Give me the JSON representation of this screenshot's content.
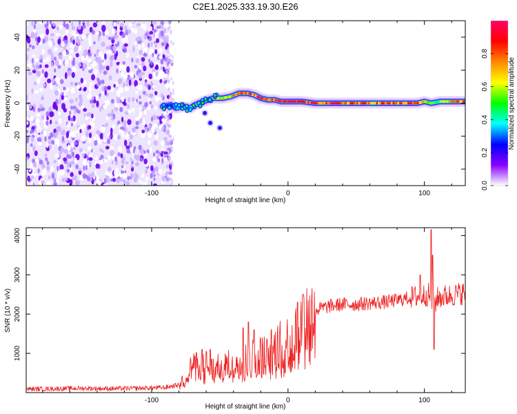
{
  "title": "C2E1.2025.333.19.30.E26",
  "chart_data": [
    {
      "type": "heatmap",
      "name": "spectrogram",
      "xlabel": "Height of straight line (km)",
      "ylabel": "Frequency (Hz)",
      "xlim": [
        -192,
        130
      ],
      "ylim": [
        -50,
        50
      ],
      "xticks": [
        -100,
        0,
        100
      ],
      "yticks": [
        -40,
        -20,
        0,
        20,
        40
      ],
      "colorbar": {
        "label": "Normalized spectral amplitude",
        "range": [
          0,
          1
        ],
        "ticks": [
          "0.0",
          "0.2",
          "0.4",
          "0.6",
          "0.8"
        ],
        "tick_values": [
          0,
          0.2,
          0.4,
          0.6,
          0.8
        ],
        "colors": [
          "#ffffff",
          "#8800ff",
          "#0000ff",
          "#00ffff",
          "#00ff00",
          "#ffff00",
          "#ff8800",
          "#ff0000",
          "#ff0066"
        ]
      },
      "noise_region": {
        "x_start": -192,
        "x_end": -87,
        "y_min": -50,
        "y_max": 50
      },
      "ridge": [
        {
          "x": -92,
          "y": -2
        },
        {
          "x": -86,
          "y": -1
        },
        {
          "x": -82,
          "y": -3
        },
        {
          "x": -78,
          "y": -2
        },
        {
          "x": -72,
          "y": -3
        },
        {
          "x": -68,
          "y": -1
        },
        {
          "x": -62,
          "y": 1
        },
        {
          "x": -55,
          "y": 3
        },
        {
          "x": -48,
          "y": 3
        },
        {
          "x": -42,
          "y": 4
        },
        {
          "x": -36,
          "y": 6
        },
        {
          "x": -30,
          "y": 6
        },
        {
          "x": -25,
          "y": 5
        },
        {
          "x": -20,
          "y": 3
        },
        {
          "x": -15,
          "y": 2
        },
        {
          "x": -10,
          "y": 2
        },
        {
          "x": -5,
          "y": 1
        },
        {
          "x": 0,
          "y": 1
        },
        {
          "x": 10,
          "y": 1
        },
        {
          "x": 20,
          "y": 0
        },
        {
          "x": 40,
          "y": 0
        },
        {
          "x": 60,
          "y": 0
        },
        {
          "x": 80,
          "y": 0
        },
        {
          "x": 95,
          "y": 0
        },
        {
          "x": 100,
          "y": 1
        },
        {
          "x": 105,
          "y": 0
        },
        {
          "x": 112,
          "y": 1
        },
        {
          "x": 130,
          "y": 1
        }
      ],
      "ridge_amplitude": [
        {
          "x": -92,
          "a": 0.15
        },
        {
          "x": -82,
          "a": 0.35
        },
        {
          "x": -70,
          "a": 0.45
        },
        {
          "x": -55,
          "a": 0.55
        },
        {
          "x": -40,
          "a": 0.65
        },
        {
          "x": -30,
          "a": 0.85
        },
        {
          "x": -15,
          "a": 0.8
        },
        {
          "x": 0,
          "a": 0.9
        },
        {
          "x": 20,
          "a": 0.9
        },
        {
          "x": 60,
          "a": 0.75
        },
        {
          "x": 95,
          "a": 0.8
        },
        {
          "x": 105,
          "a": 0.45
        },
        {
          "x": 130,
          "a": 0.75
        }
      ],
      "secondary_spots": [
        {
          "x": -61,
          "y": -6
        },
        {
          "x": -57,
          "y": -12
        },
        {
          "x": -50,
          "y": -15
        }
      ]
    },
    {
      "type": "line",
      "name": "snr",
      "xlabel": "Height of straight line (km)",
      "ylabel": "SNR (10 * v/v)",
      "xlim": [
        -192,
        130
      ],
      "ylim": [
        0,
        4200
      ],
      "xticks": [
        -100,
        0,
        100
      ],
      "yticks": [
        1000,
        2000,
        3000,
        4000
      ],
      "color": "#ee2222",
      "x": [
        -192,
        -170,
        -150,
        -130,
        -110,
        -100,
        -90,
        -80,
        -76,
        -70,
        -64,
        -60,
        -56,
        -50,
        -44,
        -40,
        -36,
        -30,
        -26,
        -20,
        -16,
        -10,
        -5,
        0,
        5,
        10,
        14,
        20,
        30,
        40,
        50,
        60,
        70,
        80,
        90,
        95,
        100,
        103,
        106,
        107,
        110,
        115,
        120,
        130
      ],
      "y": [
        90,
        100,
        110,
        100,
        110,
        120,
        130,
        200,
        380,
        700,
        680,
        620,
        600,
        650,
        700,
        720,
        800,
        850,
        900,
        950,
        1000,
        1100,
        1200,
        1300,
        1450,
        1700,
        1900,
        2100,
        2200,
        2250,
        2250,
        2280,
        2300,
        2350,
        2420,
        2450,
        2480,
        2500,
        2300,
        2250,
        2420,
        2450,
        2480,
        2550
      ],
      "spikes": [
        {
          "x": -63,
          "y": 1100
        },
        {
          "x": -60,
          "y": 1050
        },
        {
          "x": -57,
          "y": 1100
        },
        {
          "x": -33,
          "y": 1650
        },
        {
          "x": -29,
          "y": 1800
        },
        {
          "x": -25,
          "y": 1600
        },
        {
          "x": 7,
          "y": 2300
        },
        {
          "x": 11,
          "y": 2500
        },
        {
          "x": 97,
          "y": 3000
        },
        {
          "x": 105,
          "y": 4150
        },
        {
          "x": 106,
          "y": 3500
        },
        {
          "x": 107,
          "y": 1100
        }
      ]
    }
  ]
}
